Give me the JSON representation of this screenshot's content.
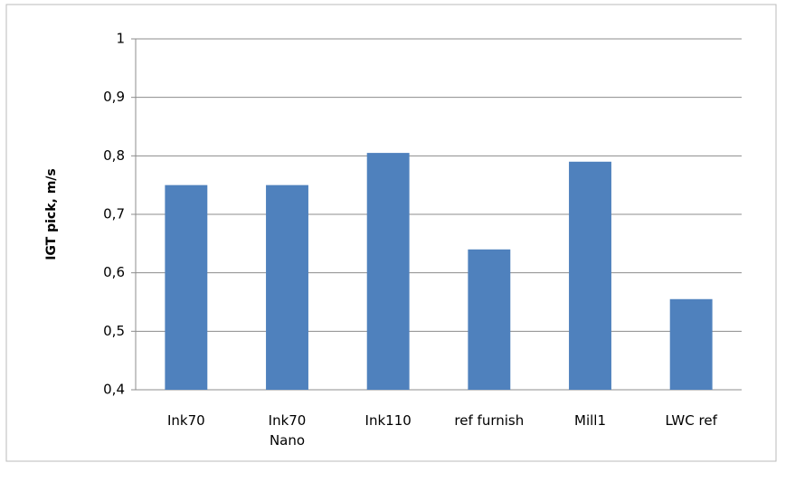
{
  "chart_data": {
    "type": "bar",
    "y_label": "IGT pick, m/s",
    "categories": [
      "Ink70",
      "Ink70\nNano",
      "Ink110",
      "ref furnish",
      "Mill1",
      "LWC ref"
    ],
    "values": [
      0.75,
      0.75,
      0.805,
      0.64,
      0.79,
      0.555
    ],
    "color": "#4f81bd",
    "ylim": [
      0.4,
      1
    ],
    "yticks": [
      {
        "value": 0.4,
        "label": "0,4"
      },
      {
        "value": 0.5,
        "label": "0,5"
      },
      {
        "value": 0.6,
        "label": "0,6"
      },
      {
        "value": 0.7,
        "label": "0,7"
      },
      {
        "value": 0.8,
        "label": "0,8"
      },
      {
        "value": 0.9,
        "label": "0,9"
      },
      1
    ],
    "grid": true
  }
}
